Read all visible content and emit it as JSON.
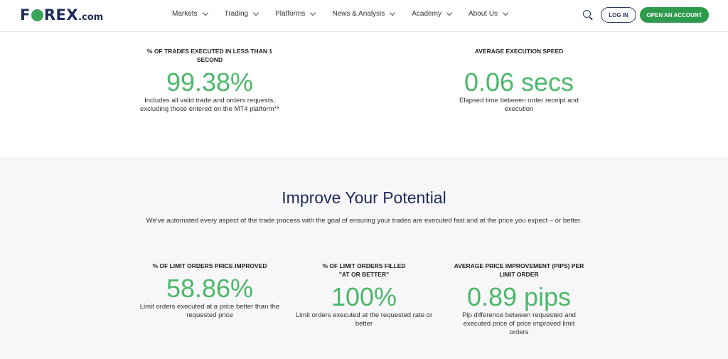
{
  "header": {
    "logo": {
      "pre": "F",
      "post": "REX",
      ".com": ".com"
    },
    "nav": [
      "Markets",
      "Trading",
      "Platforms",
      "News & Analysis",
      "Academy",
      "About Us"
    ],
    "login": "LOG IN",
    "open_account": "OPEN AN ACCOUNT"
  },
  "execution_stats": [
    {
      "heading": "% of trades executed in less than 1 second",
      "value": "99.38%",
      "desc": "Includes all valid trade and orders requests, excluding those entered on the MT4 platform**"
    },
    {
      "heading": "Average execution speed",
      "value": "0.06 secs",
      "desc": "Elapsed time between order receipt and execution"
    }
  ],
  "potential": {
    "title": "Improve Your Potential",
    "intro": "We've automated every aspect of the trade process with the goal of ensuring your trades are executed fast and at the price you expect – or better.",
    "stats": [
      {
        "heading": "% of limit orders price improved",
        "value": "58.86%",
        "desc": "Limit orders executed at a price better than the requested price"
      },
      {
        "heading": "% of limit orders filled \"at or better\"",
        "value": "100%",
        "desc": "Limit orders executed at the requested rate or better"
      },
      {
        "heading": "Average price improvement (pips) per limit order",
        "value": "0.89 pips",
        "desc": "Pip difference between requested and executed price of price improved limit orders"
      }
    ]
  },
  "colors": {
    "brand_navy": "#1e2a5a",
    "green": "#4cb86a",
    "button_green": "#2e9a4c"
  }
}
